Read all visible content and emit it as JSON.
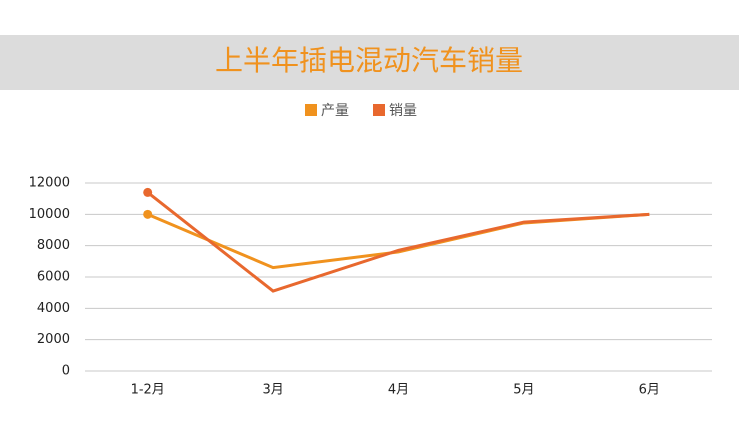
{
  "chart_data": {
    "type": "line",
    "title": "上半年插电混动汽车销量",
    "categories": [
      "1-2月",
      "3月",
      "4月",
      "5月",
      "6月"
    ],
    "series": [
      {
        "name": "产量",
        "color": "#f0921e",
        "values": [
          10000,
          6600,
          7600,
          9450,
          10000
        ]
      },
      {
        "name": "销量",
        "color": "#e8682e",
        "values": [
          11400,
          5100,
          7700,
          9500,
          10000
        ]
      }
    ],
    "ylim": [
      0,
      12000
    ],
    "yticks": [
      0,
      2000,
      4000,
      6000,
      8000,
      10000,
      12000
    ],
    "grid": true,
    "legend": "top"
  }
}
